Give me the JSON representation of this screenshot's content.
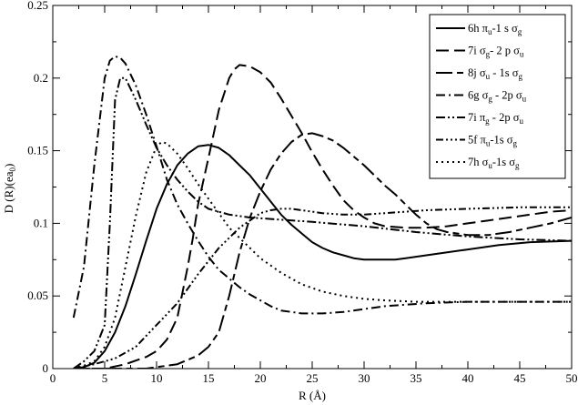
{
  "chart_data": {
    "type": "line",
    "xlabel": "R  (Å)",
    "ylabel": "D (R)(ea0)",
    "xlim": [
      0,
      50
    ],
    "ylim": [
      0,
      0.25
    ],
    "xticks": [
      0,
      5,
      10,
      15,
      20,
      25,
      30,
      35,
      40,
      45,
      50
    ],
    "yticks": [
      0,
      0.05,
      0.1,
      0.15,
      0.2,
      0.25
    ],
    "ytick_labels": [
      "0",
      "0.05",
      "0.1",
      "0.15",
      "0.2",
      "0.25"
    ],
    "grid": false,
    "legend_position": "top-right",
    "series": [
      {
        "name": "6h πu-1 s σg",
        "dash": "solid",
        "points": [
          [
            2,
            0
          ],
          [
            3,
            0.001
          ],
          [
            4,
            0.004
          ],
          [
            5,
            0.012
          ],
          [
            6,
            0.025
          ],
          [
            7,
            0.043
          ],
          [
            8,
            0.065
          ],
          [
            9,
            0.088
          ],
          [
            10,
            0.11
          ],
          [
            11,
            0.127
          ],
          [
            12,
            0.14
          ],
          [
            13,
            0.148
          ],
          [
            14,
            0.153
          ],
          [
            15,
            0.154
          ],
          [
            16,
            0.152
          ],
          [
            17,
            0.147
          ],
          [
            18,
            0.14
          ],
          [
            19,
            0.133
          ],
          [
            20,
            0.124
          ],
          [
            21,
            0.115
          ],
          [
            22,
            0.106
          ],
          [
            23,
            0.099
          ],
          [
            24,
            0.093
          ],
          [
            25,
            0.087
          ],
          [
            26,
            0.083
          ],
          [
            27,
            0.08
          ],
          [
            28,
            0.078
          ],
          [
            29,
            0.076
          ],
          [
            30,
            0.075
          ],
          [
            31,
            0.075
          ],
          [
            32,
            0.075
          ],
          [
            33,
            0.075
          ],
          [
            34,
            0.076
          ],
          [
            35,
            0.077
          ],
          [
            37,
            0.079
          ],
          [
            40,
            0.082
          ],
          [
            43,
            0.085
          ],
          [
            46,
            0.087
          ],
          [
            50,
            0.088
          ]
        ]
      },
      {
        "name": "7i σg- 2 p σu",
        "dash": "long",
        "points": [
          [
            2,
            0
          ],
          [
            5,
            0
          ],
          [
            7,
            0.003
          ],
          [
            9,
            0.008
          ],
          [
            10,
            0.012
          ],
          [
            11,
            0.02
          ],
          [
            12,
            0.035
          ],
          [
            13,
            0.07
          ],
          [
            13.5,
            0.09
          ],
          [
            14,
            0.113
          ],
          [
            15,
            0.145
          ],
          [
            16,
            0.178
          ],
          [
            17,
            0.2
          ],
          [
            17.5,
            0.206
          ],
          [
            18,
            0.209
          ],
          [
            19,
            0.208
          ],
          [
            20,
            0.204
          ],
          [
            21,
            0.197
          ],
          [
            22,
            0.186
          ],
          [
            23,
            0.174
          ],
          [
            24,
            0.162
          ],
          [
            25,
            0.149
          ],
          [
            26,
            0.137
          ],
          [
            27,
            0.126
          ],
          [
            28,
            0.116
          ],
          [
            29,
            0.109
          ],
          [
            30,
            0.104
          ],
          [
            31,
            0.1
          ],
          [
            32,
            0.098
          ],
          [
            34,
            0.097
          ],
          [
            36,
            0.097
          ],
          [
            38,
            0.098
          ],
          [
            40,
            0.1
          ],
          [
            42,
            0.102
          ],
          [
            44,
            0.104
          ],
          [
            46,
            0.106
          ],
          [
            48,
            0.108
          ],
          [
            50,
            0.109
          ]
        ]
      },
      {
        "name": "8j σu - 1s σg",
        "dash": "longshort",
        "points": [
          [
            2,
            0
          ],
          [
            9,
            0
          ],
          [
            12,
            0.003
          ],
          [
            14,
            0.009
          ],
          [
            15,
            0.015
          ],
          [
            16,
            0.025
          ],
          [
            17,
            0.05
          ],
          [
            18,
            0.08
          ],
          [
            19,
            0.104
          ],
          [
            20,
            0.122
          ],
          [
            21,
            0.137
          ],
          [
            22,
            0.148
          ],
          [
            23,
            0.156
          ],
          [
            24,
            0.161
          ],
          [
            25,
            0.162
          ],
          [
            26,
            0.16
          ],
          [
            27,
            0.157
          ],
          [
            28,
            0.152
          ],
          [
            29,
            0.146
          ],
          [
            30,
            0.14
          ],
          [
            31,
            0.133
          ],
          [
            32,
            0.126
          ],
          [
            33,
            0.12
          ],
          [
            34,
            0.113
          ],
          [
            35,
            0.106
          ],
          [
            36,
            0.1
          ],
          [
            37,
            0.096
          ],
          [
            38,
            0.094
          ],
          [
            40,
            0.092
          ],
          [
            42,
            0.092
          ],
          [
            44,
            0.094
          ],
          [
            46,
            0.097
          ],
          [
            48,
            0.1
          ],
          [
            50,
            0.104
          ]
        ]
      },
      {
        "name": "6g σg - 2p σu",
        "dash": "dashdot",
        "points": [
          [
            2,
            0.035
          ],
          [
            3,
            0.07
          ],
          [
            4,
            0.14
          ],
          [
            5,
            0.2
          ],
          [
            5.5,
            0.212
          ],
          [
            6,
            0.215
          ],
          [
            6.5,
            0.214
          ],
          [
            7,
            0.21
          ],
          [
            8,
            0.195
          ],
          [
            9,
            0.175
          ],
          [
            10,
            0.153
          ],
          [
            11,
            0.13
          ],
          [
            12,
            0.113
          ],
          [
            13,
            0.1
          ],
          [
            14,
            0.088
          ],
          [
            15,
            0.077
          ],
          [
            16,
            0.068
          ],
          [
            17,
            0.062
          ],
          [
            18,
            0.056
          ],
          [
            19,
            0.051
          ],
          [
            20,
            0.047
          ],
          [
            21,
            0.043
          ],
          [
            22,
            0.04
          ],
          [
            23,
            0.039
          ],
          [
            24,
            0.038
          ],
          [
            25,
            0.038
          ],
          [
            26,
            0.038
          ],
          [
            28,
            0.039
          ],
          [
            30,
            0.041
          ],
          [
            32,
            0.043
          ],
          [
            34,
            0.044
          ],
          [
            36,
            0.045
          ],
          [
            40,
            0.046
          ],
          [
            45,
            0.046
          ],
          [
            50,
            0.046
          ]
        ]
      },
      {
        "name": "7i πg - 2p σu",
        "dash": "dashdotdot",
        "points": [
          [
            2,
            0
          ],
          [
            3,
            0.005
          ],
          [
            4,
            0.012
          ],
          [
            5,
            0.03
          ],
          [
            5.5,
            0.1
          ],
          [
            6,
            0.185
          ],
          [
            6.5,
            0.2
          ],
          [
            7,
            0.2
          ],
          [
            8,
            0.185
          ],
          [
            9,
            0.168
          ],
          [
            10,
            0.152
          ],
          [
            11,
            0.14
          ],
          [
            12,
            0.13
          ],
          [
            13,
            0.122
          ],
          [
            14,
            0.115
          ],
          [
            15,
            0.11
          ],
          [
            17,
            0.106
          ],
          [
            19,
            0.104
          ],
          [
            21,
            0.103
          ],
          [
            25,
            0.101
          ],
          [
            30,
            0.098
          ],
          [
            35,
            0.094
          ],
          [
            40,
            0.091
          ],
          [
            45,
            0.089
          ],
          [
            50,
            0.088
          ]
        ]
      },
      {
        "name": "5f πu-1s σg",
        "dash": "dashdotdotdot",
        "points": [
          [
            2,
            0
          ],
          [
            4,
            0.003
          ],
          [
            6,
            0.007
          ],
          [
            8,
            0.015
          ],
          [
            10,
            0.03
          ],
          [
            12,
            0.045
          ],
          [
            14,
            0.065
          ],
          [
            16,
            0.083
          ],
          [
            18,
            0.097
          ],
          [
            20,
            0.107
          ],
          [
            21,
            0.109
          ],
          [
            22,
            0.11
          ],
          [
            23,
            0.11
          ],
          [
            24,
            0.109
          ],
          [
            26,
            0.107
          ],
          [
            28,
            0.106
          ],
          [
            30,
            0.106
          ],
          [
            32,
            0.107
          ],
          [
            34,
            0.108
          ],
          [
            36,
            0.109
          ],
          [
            40,
            0.11
          ],
          [
            45,
            0.111
          ],
          [
            50,
            0.111
          ]
        ]
      },
      {
        "name": "7h σu-1s σg",
        "dash": "dotted",
        "points": [
          [
            2,
            0
          ],
          [
            3,
            0.002
          ],
          [
            4,
            0.005
          ],
          [
            5,
            0.015
          ],
          [
            6,
            0.035
          ],
          [
            7,
            0.07
          ],
          [
            8,
            0.105
          ],
          [
            9,
            0.135
          ],
          [
            10,
            0.153
          ],
          [
            10.5,
            0.156
          ],
          [
            11,
            0.155
          ],
          [
            12,
            0.148
          ],
          [
            13,
            0.138
          ],
          [
            14,
            0.127
          ],
          [
            15,
            0.117
          ],
          [
            16,
            0.107
          ],
          [
            17,
            0.097
          ],
          [
            18,
            0.09
          ],
          [
            19,
            0.083
          ],
          [
            20,
            0.076
          ],
          [
            22,
            0.066
          ],
          [
            24,
            0.058
          ],
          [
            26,
            0.053
          ],
          [
            28,
            0.05
          ],
          [
            30,
            0.048
          ],
          [
            32,
            0.047
          ],
          [
            35,
            0.046
          ],
          [
            40,
            0.046
          ],
          [
            45,
            0.046
          ],
          [
            50,
            0.046
          ]
        ]
      }
    ],
    "legend": [
      {
        "base": "6h π",
        "s1": "u",
        "mid": "-1 s σ",
        "s2": "g",
        "tail": ""
      },
      {
        "base": "7i σ",
        "s1": "g",
        "mid": "- 2 p σ",
        "s2": "u",
        "tail": ""
      },
      {
        "base": "8j σ",
        "s1": "u",
        "mid": " - 1s σ",
        "s2": "g",
        "tail": ""
      },
      {
        "base": "6g σ",
        "s1": "g",
        "mid": " - 2p σ",
        "s2": "u",
        "tail": ""
      },
      {
        "base": "7i π",
        "s1": "g",
        "mid": " - 2p σ",
        "s2": "u",
        "tail": ""
      },
      {
        "base": "5f π",
        "s1": "u",
        "mid": "-1s σ",
        "s2": "g",
        "tail": ""
      },
      {
        "base": "7h σ",
        "s1": "u",
        "mid": "-1s σ",
        "s2": "g",
        "tail": ""
      }
    ]
  }
}
